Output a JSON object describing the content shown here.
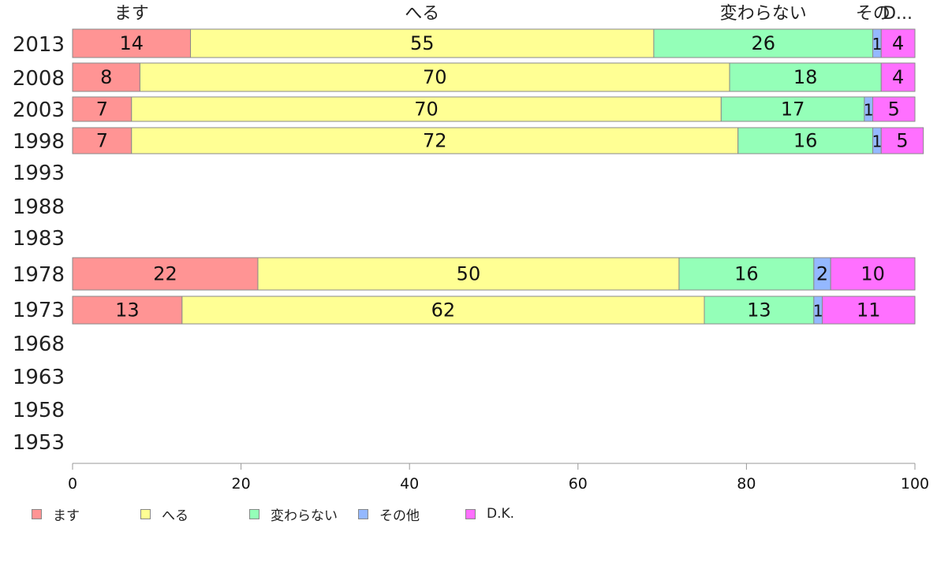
{
  "chart_data": {
    "type": "bar",
    "orientation": "horizontal",
    "stacked": true,
    "categories": [
      "2013",
      "2008",
      "2003",
      "1998",
      "1993",
      "1988",
      "1983",
      "1978",
      "1973",
      "1968",
      "1963",
      "1958",
      "1953"
    ],
    "series": [
      {
        "name": "ます",
        "color": "#ff9494",
        "values": [
          14,
          8,
          7,
          7,
          null,
          null,
          null,
          22,
          13,
          null,
          null,
          null,
          null
        ]
      },
      {
        "name": "へる",
        "color": "#ffff94",
        "values": [
          55,
          70,
          70,
          72,
          null,
          null,
          null,
          50,
          62,
          null,
          null,
          null,
          null
        ]
      },
      {
        "name": "変わらない",
        "color": "#94ffb8",
        "values": [
          26,
          18,
          17,
          16,
          null,
          null,
          null,
          16,
          13,
          null,
          null,
          null,
          null
        ]
      },
      {
        "name": "その他",
        "color": "#94b8ff",
        "values": [
          1,
          0,
          1,
          1,
          null,
          null,
          null,
          2,
          1,
          null,
          null,
          null,
          null
        ]
      },
      {
        "name": "D.K.",
        "color": "#ff70ff",
        "values": [
          4,
          4,
          5,
          5,
          null,
          null,
          null,
          10,
          11,
          null,
          null,
          null,
          null
        ]
      }
    ],
    "top_labels": [
      "ます",
      "へる",
      "変わらない",
      "その",
      "D..."
    ],
    "xlim": [
      0,
      100
    ],
    "xticks": [
      0,
      20,
      40,
      60,
      80,
      100
    ],
    "title": "",
    "xlabel": "",
    "ylabel": "",
    "legend_position": "bottom-left",
    "grid": false
  }
}
